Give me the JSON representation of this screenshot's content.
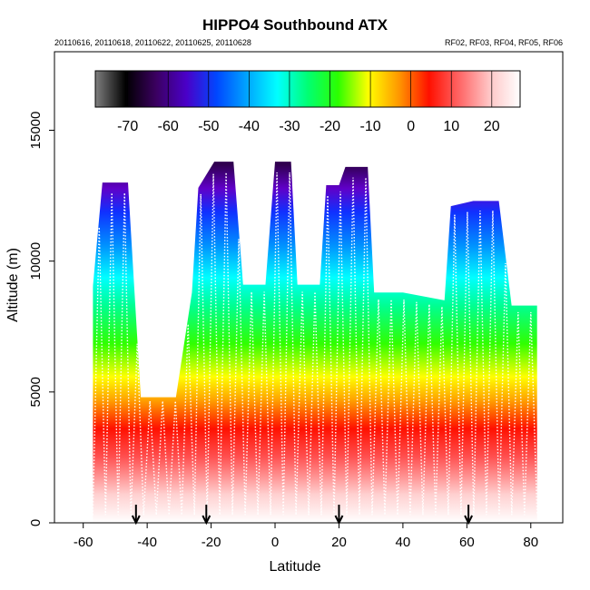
{
  "chart_data": {
    "type": "heatmap",
    "title": "HIPPO4 Southbound ATX",
    "subtitle_left": "20110616, 20110618, 20110622, 20110625, 20110628",
    "subtitle_right": "RF02, RF03, RF04, RF05, RF06",
    "xlabel": "Latitude",
    "ylabel": "Altitude (m)",
    "xlim": [
      -69,
      90
    ],
    "ylim": [
      0,
      18000
    ],
    "x_ticks": [
      -60,
      -40,
      -20,
      0,
      20,
      40,
      60,
      80
    ],
    "y_ticks": [
      0,
      5000,
      10000,
      15000
    ],
    "colorbar": {
      "range": [
        -78,
        27
      ],
      "ticks": [
        -70,
        -60,
        -50,
        -40,
        -30,
        -20,
        -10,
        0,
        10,
        20
      ],
      "units": "ATX"
    },
    "sampling_envelope": [
      [
        -57,
        9000
      ],
      [
        -54,
        13000
      ],
      [
        -50,
        13000
      ],
      [
        -46,
        13000
      ],
      [
        -42,
        4800
      ],
      [
        -36,
        4800
      ],
      [
        -31,
        4800
      ],
      [
        -26,
        8800
      ],
      [
        -24,
        12800
      ],
      [
        -19,
        13800
      ],
      [
        -13,
        13800
      ],
      [
        -10,
        9100
      ],
      [
        -3,
        9100
      ],
      [
        0,
        13800
      ],
      [
        5,
        13800
      ],
      [
        7,
        9100
      ],
      [
        14,
        9100
      ],
      [
        16,
        12900
      ],
      [
        20,
        12900
      ],
      [
        22,
        13600
      ],
      [
        29,
        13600
      ],
      [
        31,
        8800
      ],
      [
        40,
        8800
      ],
      [
        53,
        8500
      ],
      [
        55,
        12100
      ],
      [
        62,
        12300
      ],
      [
        70,
        12300
      ],
      [
        74,
        8300
      ],
      [
        82,
        8300
      ]
    ],
    "profile_endpoints_latitude": [
      -43.5,
      -21.5,
      20,
      60.5
    ]
  },
  "labels": {
    "title": "HIPPO4 Southbound ATX",
    "subtitle_left": "20110616, 20110618, 20110622, 20110625, 20110628",
    "subtitle_right": "RF02, RF03, RF04, RF05, RF06",
    "xlabel": "Latitude",
    "ylabel": "Altitude (m)"
  },
  "colors": {
    "ramp": [
      "#7f7f7f",
      "#000000",
      "#3b0060",
      "#4a00c8",
      "#0047ff",
      "#00a5ff",
      "#00ffff",
      "#00ff73",
      "#2cff00",
      "#ffff00",
      "#ff9800",
      "#ff1000",
      "#ff6666",
      "#ffc7c7",
      "#ffffff"
    ]
  }
}
